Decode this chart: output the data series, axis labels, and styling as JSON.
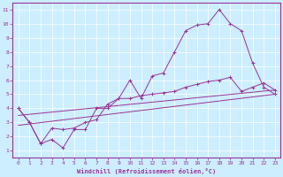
{
  "xlabel": "Windchill (Refroidissement éolien,°C)",
  "background_color": "#cceeff",
  "line_color": "#993399",
  "xlim": [
    -0.5,
    23.5
  ],
  "ylim": [
    0.5,
    11.5
  ],
  "xticks": [
    0,
    1,
    2,
    3,
    4,
    5,
    6,
    7,
    8,
    9,
    10,
    11,
    12,
    13,
    14,
    15,
    16,
    17,
    18,
    19,
    20,
    21,
    22,
    23
  ],
  "yticks": [
    1,
    2,
    3,
    4,
    5,
    6,
    7,
    8,
    9,
    10,
    11
  ],
  "series1_x": [
    0,
    1,
    2,
    3,
    4,
    5,
    6,
    7,
    8,
    9,
    10,
    11,
    12,
    13,
    14,
    15,
    16,
    17,
    18,
    19,
    20,
    21,
    22,
    23
  ],
  "series1_y": [
    4.0,
    3.0,
    1.5,
    1.8,
    1.2,
    2.5,
    2.5,
    4.0,
    4.0,
    4.7,
    6.0,
    4.7,
    6.3,
    6.5,
    8.0,
    9.5,
    9.9,
    10.0,
    11.0,
    10.0,
    9.5,
    7.2,
    5.5,
    5.0
  ],
  "series2_x": [
    0,
    1,
    2,
    3,
    4,
    5,
    6,
    7,
    8,
    9,
    10,
    11,
    12,
    13,
    14,
    15,
    16,
    17,
    18,
    19,
    20,
    21,
    22,
    23
  ],
  "series2_y": [
    4.0,
    3.0,
    1.5,
    2.6,
    2.5,
    2.6,
    3.0,
    3.2,
    4.3,
    4.7,
    4.7,
    4.9,
    5.0,
    5.1,
    5.2,
    5.5,
    5.7,
    5.9,
    6.0,
    6.2,
    5.2,
    5.5,
    5.8,
    5.3
  ],
  "series3_x": [
    0,
    23
  ],
  "series3_y": [
    3.5,
    5.3
  ],
  "series4_x": [
    0,
    23
  ],
  "series4_y": [
    2.8,
    5.0
  ],
  "grid_color": "#ffffff",
  "spine_color": "#993399",
  "tick_fontsize": 4.5,
  "xlabel_fontsize": 5.0
}
